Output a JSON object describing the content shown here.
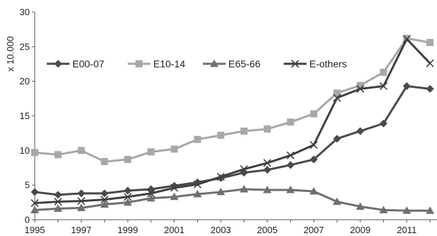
{
  "chart_data": {
    "type": "line",
    "title": "",
    "xlabel": "",
    "ylabel": "x 10.000",
    "ylim": [
      0,
      30
    ],
    "xlim": [
      1995,
      2012.3
    ],
    "yticks": [
      0,
      5,
      10,
      15,
      20,
      25,
      30
    ],
    "xticks": [
      1995,
      1997,
      1999,
      2001,
      2003,
      2005,
      2007,
      2009,
      2011
    ],
    "grid": false,
    "legend_position": "top-left",
    "x": [
      1995,
      1996,
      1997,
      1998,
      1999,
      2000,
      2001,
      2002,
      2003,
      2004,
      2005,
      2006,
      2007,
      2008,
      2009,
      2010,
      2011,
      2012
    ],
    "series": [
      {
        "name": "E00-07",
        "color": "#4a4a4a",
        "marker": "diamond",
        "values": [
          4.0,
          3.6,
          3.8,
          3.8,
          4.2,
          4.4,
          4.9,
          5.4,
          6.0,
          6.8,
          7.2,
          7.9,
          8.7,
          11.7,
          12.8,
          13.9,
          19.3,
          18.9
        ]
      },
      {
        "name": "E10-14",
        "color": "#a8a8a8",
        "marker": "square",
        "values": [
          9.7,
          9.4,
          10.0,
          8.4,
          8.7,
          9.8,
          10.2,
          11.6,
          12.2,
          12.8,
          13.1,
          14.1,
          15.3,
          18.3,
          19.4,
          21.3,
          26.2,
          25.6
        ]
      },
      {
        "name": "E65-66",
        "color": "#6f6f6f",
        "marker": "triangle",
        "values": [
          1.4,
          1.6,
          1.7,
          2.2,
          2.5,
          3.1,
          3.3,
          3.7,
          4.0,
          4.4,
          4.3,
          4.3,
          4.1,
          2.6,
          1.9,
          1.4,
          1.3,
          1.3
        ]
      },
      {
        "name": "E-others",
        "color": "#404040",
        "marker": "x",
        "values": [
          2.4,
          2.6,
          2.7,
          2.9,
          3.3,
          3.8,
          4.6,
          5.1,
          6.2,
          7.3,
          8.2,
          9.3,
          10.8,
          17.6,
          18.9,
          19.3,
          26.1,
          22.6
        ]
      }
    ]
  }
}
